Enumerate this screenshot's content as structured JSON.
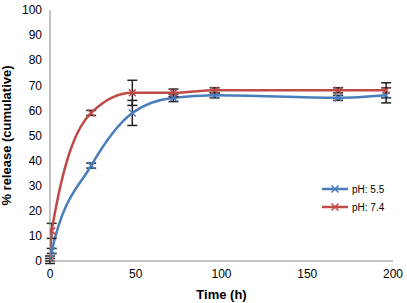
{
  "chart_data": {
    "type": "line",
    "x_label": "Time (h)",
    "y_label": "% release (cumulative)",
    "x": [
      0,
      1,
      24,
      48,
      72,
      96,
      168,
      196
    ],
    "xlim": [
      0,
      200
    ],
    "xticks": [
      0,
      50,
      100,
      150,
      200
    ],
    "ylim": [
      0,
      100
    ],
    "yticks": [
      0,
      10,
      20,
      30,
      40,
      50,
      60,
      70,
      80,
      90,
      100
    ],
    "grid": false,
    "legend": "right",
    "series": [
      {
        "name": "pH: 5.5",
        "color": "#4a7ebb",
        "marker": "x",
        "line_style": "smooth",
        "values": [
          1,
          4,
          38,
          59,
          65,
          66,
          65,
          66
        ],
        "errors": [
          1,
          1,
          1,
          5,
          1.5,
          1,
          1,
          3
        ]
      },
      {
        "name": "pH: 7.4",
        "color": "#be4b48",
        "marker": "x",
        "line_style": "smooth",
        "values": [
          0,
          12,
          59,
          67,
          67,
          68,
          68,
          68
        ],
        "errors": [
          1,
          3,
          1,
          5,
          1.5,
          1,
          1,
          3
        ]
      }
    ]
  }
}
